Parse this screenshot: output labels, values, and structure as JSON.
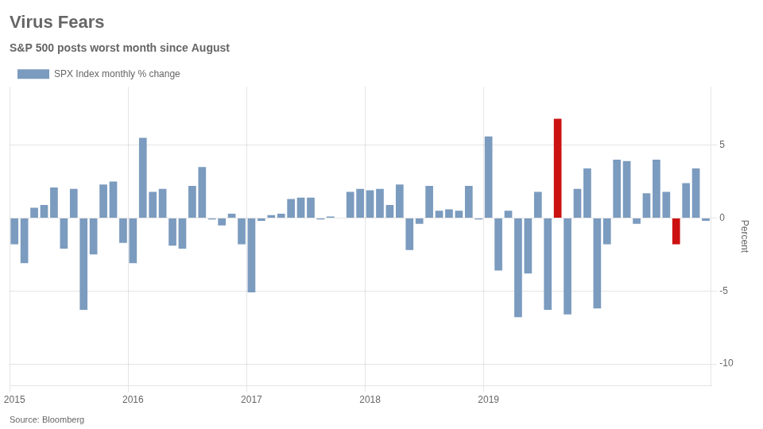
{
  "chart_data": {
    "type": "bar",
    "title": "Virus Fears",
    "subtitle": "S&P 500 posts worst month since August",
    "source": "Source: Bloomberg",
    "y_label": "Percent",
    "categories": [
      "2015",
      null,
      null,
      null,
      null,
      null,
      null,
      null,
      null,
      null,
      null,
      null,
      "2016",
      null,
      null,
      null,
      null,
      null,
      null,
      null,
      null,
      null,
      null,
      null,
      "2017",
      null,
      null,
      null,
      null,
      null,
      null,
      null,
      null,
      null,
      null,
      null,
      "2018",
      null,
      null,
      null,
      null,
      null,
      null,
      null,
      null,
      null,
      null,
      null,
      "2019",
      null,
      null,
      null,
      null,
      null,
      null,
      null,
      null,
      null,
      null,
      null,
      null,
      null,
      null,
      null,
      null,
      null,
      null,
      null,
      null,
      null,
      null
    ],
    "series": [
      {
        "name": "SPX Index monthly % change",
        "colors": [
          "#7b9bbf",
          "#7b9bbf",
          "#7b9bbf",
          "#7b9bbf",
          "#7b9bbf",
          "#7b9bbf",
          "#7b9bbf",
          "#7b9bbf",
          "#7b9bbf",
          "#7b9bbf",
          "#7b9bbf",
          "#7b9bbf",
          "#7b9bbf",
          "#7b9bbf",
          "#7b9bbf",
          "#7b9bbf",
          "#7b9bbf",
          "#7b9bbf",
          "#7b9bbf",
          "#7b9bbf",
          "#7b9bbf",
          "#7b9bbf",
          "#7b9bbf",
          "#7b9bbf",
          "#7b9bbf",
          "#7b9bbf",
          "#7b9bbf",
          "#7b9bbf",
          "#7b9bbf",
          "#7b9bbf",
          "#7b9bbf",
          "#7b9bbf",
          "#7b9bbf",
          "#7b9bbf",
          "#7b9bbf",
          "#7b9bbf",
          "#7b9bbf",
          "#7b9bbf",
          "#7b9bbf",
          "#7b9bbf",
          "#7b9bbf",
          "#7b9bbf",
          "#7b9bbf",
          "#7b9bbf",
          "#7b9bbf",
          "#7b9bbf",
          "#7b9bbf",
          "#7b9bbf",
          "#7b9bbf",
          "#7b9bbf",
          "#7b9bbf",
          "#7b9bbf",
          "#7b9bbf",
          "#7b9bbf",
          "#7b9bbf",
          "#cc1111",
          "#7b9bbf",
          "#7b9bbf",
          "#7b9bbf",
          "#7b9bbf",
          "#7b9bbf",
          "#7b9bbf",
          "#7b9bbf",
          "#7b9bbf",
          "#7b9bbf",
          "#7b9bbf",
          "#7b9bbf",
          "#cc1111",
          "#7b9bbf",
          "#7b9bbf",
          "#7b9bbf"
        ],
        "values": [
          -1.8,
          -3.1,
          0.7,
          0.9,
          2.1,
          -2.1,
          2.0,
          -6.3,
          -2.5,
          2.3,
          2.5,
          -1.7,
          -3.1,
          5.5,
          1.8,
          2.0,
          -1.9,
          -2.1,
          2.2,
          3.5,
          -0.1,
          -0.5,
          0.3,
          -1.8,
          -5.1,
          -0.2,
          0.2,
          0.3,
          1.3,
          1.4,
          1.4,
          -0.1,
          0.1,
          0.0,
          1.8,
          2.0,
          1.9,
          2.0,
          0.9,
          2.3,
          -2.2,
          -0.4,
          2.2,
          0.5,
          0.6,
          0.5,
          2.2,
          -0.1,
          5.6,
          -3.6,
          0.5,
          -6.8,
          -3.8,
          1.8,
          -6.3,
          6.8,
          -6.6,
          2.0,
          3.4,
          -6.2,
          -1.8,
          4.0,
          3.9,
          -0.4,
          1.7,
          4.0,
          1.8,
          -1.8,
          2.4,
          3.4,
          -0.2
        ]
      }
    ],
    "ylim": [
      -11.5,
      9.0
    ],
    "yticks": [
      -10,
      -5,
      0,
      5
    ],
    "grid": true,
    "legend": "upper left"
  }
}
